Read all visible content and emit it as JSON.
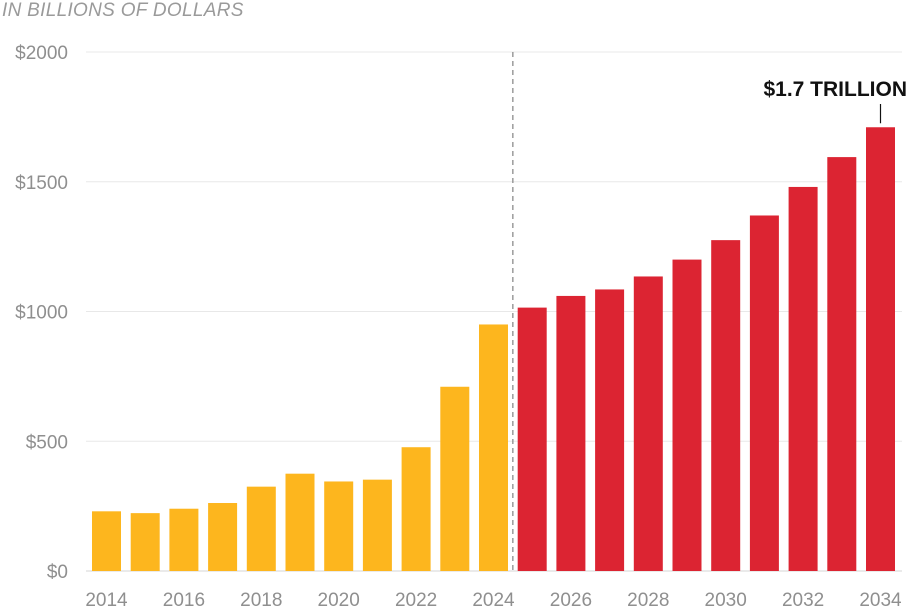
{
  "chart_data": {
    "type": "bar",
    "subtitle": "IN BILLIONS OF DOLLARS",
    "title": "",
    "xlabel": "",
    "ylabel": "",
    "ylim": [
      0,
      2000
    ],
    "y_ticks": [
      0,
      500,
      1000,
      1500,
      2000
    ],
    "y_tick_labels": [
      "$0",
      "$500",
      "$1000",
      "$1500",
      "$2000"
    ],
    "x_tick_labels": [
      "2014",
      "2016",
      "2018",
      "2020",
      "2022",
      "2024",
      "2026",
      "2028",
      "2030",
      "2032",
      "2034"
    ],
    "grid": true,
    "categories": [
      "2014",
      "2015",
      "2016",
      "2017",
      "2018",
      "2019",
      "2020",
      "2021",
      "2022",
      "2023",
      "2024",
      "2025",
      "2026",
      "2027",
      "2028",
      "2029",
      "2030",
      "2031",
      "2032",
      "2033",
      "2034"
    ],
    "values": [
      230,
      223,
      240,
      262,
      325,
      375,
      345,
      352,
      477,
      710,
      950,
      1015,
      1060,
      1085,
      1135,
      1200,
      1275,
      1370,
      1480,
      1595,
      1710
    ],
    "colors": {
      "historical": "#FDB61E",
      "projected": "#DC2432",
      "grid": "#e8e8e8",
      "divider": "#8c8c8c"
    },
    "projection_start_index": 11,
    "annotation": {
      "text": "$1.7 TRILLION",
      "category": "2034"
    }
  }
}
